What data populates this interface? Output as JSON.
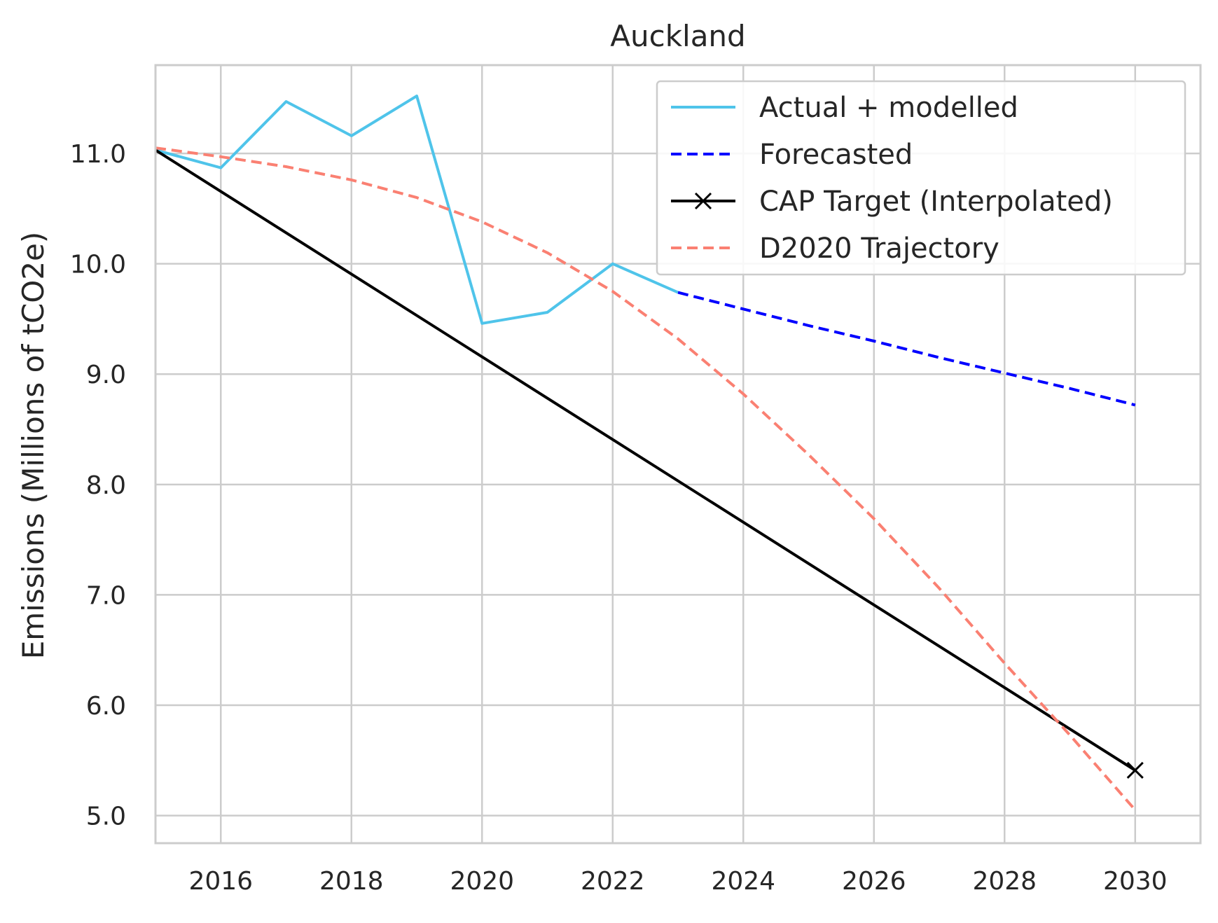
{
  "chart_data": {
    "type": "line",
    "title": "Auckland",
    "xlabel": "",
    "ylabel": "Emissions (Millions of tCO2e)",
    "xlim": [
      2015,
      2031
    ],
    "ylim": [
      4.75,
      11.8
    ],
    "x_ticks": [
      "2016",
      "2018",
      "2020",
      "2022",
      "2024",
      "2026",
      "2028",
      "2030"
    ],
    "y_ticks": [
      "5.0",
      "6.0",
      "7.0",
      "8.0",
      "9.0",
      "10.0",
      "11.0"
    ],
    "grid": true,
    "legend_position": "top-right",
    "series": [
      {
        "name": "Actual + modelled",
        "color": "#4fc4ea",
        "style": "solid",
        "x": [
          2015,
          2016,
          2017,
          2018,
          2019,
          2020,
          2021,
          2022,
          2023
        ],
        "y": [
          11.03,
          10.87,
          11.47,
          11.16,
          11.52,
          9.46,
          9.56,
          10.0,
          9.74
        ]
      },
      {
        "name": "Forecasted",
        "color": "#0000ff",
        "style": "dashed",
        "x": [
          2023,
          2024,
          2025,
          2026,
          2027,
          2028,
          2029,
          2030
        ],
        "y": [
          9.74,
          9.59,
          9.44,
          9.3,
          9.15,
          9.01,
          8.87,
          8.72
        ]
      },
      {
        "name": "CAP Target (Interpolated)",
        "color": "#000000",
        "style": "solid",
        "marker": "x",
        "marker_at": [
          2030
        ],
        "x": [
          2015,
          2030
        ],
        "y": [
          11.03,
          5.41
        ]
      },
      {
        "name": "D2020 Trajectory",
        "color": "#fa8072",
        "style": "dashed",
        "x": [
          2015,
          2016,
          2017,
          2018,
          2019,
          2020,
          2021,
          2022,
          2023,
          2024,
          2025,
          2026,
          2027,
          2028,
          2029,
          2030
        ],
        "y": [
          11.05,
          10.97,
          10.88,
          10.76,
          10.6,
          10.38,
          10.1,
          9.75,
          9.32,
          8.82,
          8.27,
          7.69,
          7.06,
          6.38,
          5.73,
          5.05
        ]
      }
    ]
  }
}
